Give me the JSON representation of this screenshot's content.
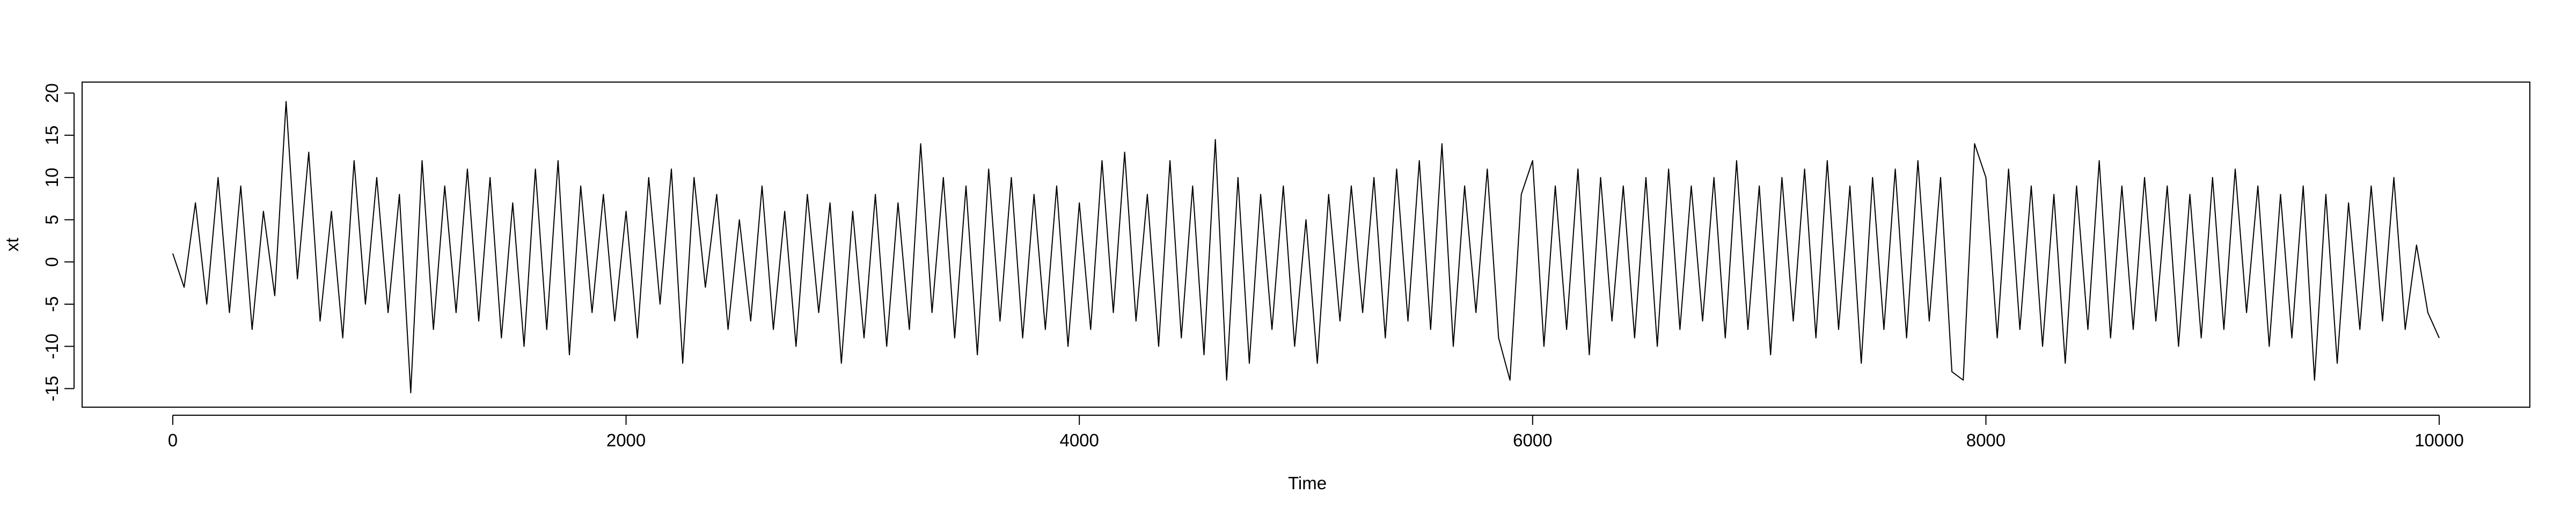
{
  "chart_data": {
    "type": "line",
    "xlabel": "Time",
    "ylabel": "xt",
    "xlim": [
      -400,
      10400
    ],
    "ylim": [
      -17.2,
      21.3
    ],
    "xticks": [
      0,
      2000,
      4000,
      6000,
      8000,
      10000
    ],
    "yticks": [
      -15,
      -10,
      -5,
      0,
      5,
      10,
      15,
      20
    ],
    "color": "#000000",
    "x": [
      0,
      50,
      100,
      150,
      200,
      250,
      300,
      350,
      400,
      450,
      500,
      550,
      600,
      650,
      700,
      750,
      800,
      850,
      900,
      950,
      1000,
      1050,
      1100,
      1150,
      1200,
      1250,
      1300,
      1350,
      1400,
      1450,
      1500,
      1550,
      1600,
      1650,
      1700,
      1750,
      1800,
      1850,
      1900,
      1950,
      2000,
      2050,
      2100,
      2150,
      2200,
      2250,
      2300,
      2350,
      2400,
      2450,
      2500,
      2550,
      2600,
      2650,
      2700,
      2750,
      2800,
      2850,
      2900,
      2950,
      3000,
      3050,
      3100,
      3150,
      3200,
      3250,
      3300,
      3350,
      3400,
      3450,
      3500,
      3550,
      3600,
      3650,
      3700,
      3750,
      3800,
      3850,
      3900,
      3950,
      4000,
      4050,
      4100,
      4150,
      4200,
      4250,
      4300,
      4350,
      4400,
      4450,
      4500,
      4550,
      4600,
      4650,
      4700,
      4750,
      4800,
      4850,
      4900,
      4950,
      5000,
      5050,
      5100,
      5150,
      5200,
      5250,
      5300,
      5350,
      5400,
      5450,
      5500,
      5550,
      5600,
      5650,
      5700,
      5750,
      5800,
      5850,
      5900,
      5950,
      6000,
      6050,
      6100,
      6150,
      6200,
      6250,
      6300,
      6350,
      6400,
      6450,
      6500,
      6550,
      6600,
      6650,
      6700,
      6750,
      6800,
      6850,
      6900,
      6950,
      7000,
      7050,
      7100,
      7150,
      7200,
      7250,
      7300,
      7350,
      7400,
      7450,
      7500,
      7550,
      7600,
      7650,
      7700,
      7750,
      7800,
      7850,
      7900,
      7950,
      8000,
      8050,
      8100,
      8150,
      8200,
      8250,
      8300,
      8350,
      8400,
      8450,
      8500,
      8550,
      8600,
      8650,
      8700,
      8750,
      8800,
      8850,
      8900,
      8950,
      9000,
      9050,
      9100,
      9150,
      9200,
      9250,
      9300,
      9350,
      9400,
      9450,
      9500,
      9550,
      9600,
      9650,
      9700,
      9750,
      9800,
      9850,
      9900,
      9950,
      10000
    ],
    "values": [
      1,
      -3,
      7,
      -5,
      10,
      -6,
      9,
      -8,
      6,
      -4,
      19,
      -2,
      13,
      -7,
      6,
      -9,
      12,
      -5,
      10,
      -6,
      8,
      -15.5,
      12,
      -8,
      9,
      -6,
      11,
      -7,
      10,
      -9,
      7,
      -10,
      11,
      -8,
      12,
      -11,
      9,
      -6,
      8,
      -7,
      6,
      -9,
      10,
      -5,
      11,
      -12,
      10,
      -3,
      8,
      -8,
      5,
      -7,
      9,
      -8,
      6,
      -10,
      8,
      -6,
      7,
      -12,
      6,
      -9,
      8,
      -10,
      7,
      -8,
      14,
      -6,
      10,
      -9,
      9,
      -11,
      11,
      -7,
      10,
      -9,
      8,
      -8,
      9,
      -10,
      7,
      -8,
      12,
      -6,
      13,
      -7,
      8,
      -10,
      12,
      -9,
      9,
      -11,
      14.5,
      -14,
      10,
      -12,
      8,
      -8,
      9,
      -10,
      5,
      -12,
      8,
      -7,
      9,
      -6,
      10,
      -9,
      11,
      -7,
      12,
      -8,
      14,
      -10,
      9,
      -6,
      11,
      -9,
      -14,
      8,
      12,
      -10,
      9,
      -8,
      11,
      -11,
      10,
      -7,
      9,
      -9,
      10,
      -10,
      11,
      -8,
      9,
      -7,
      10,
      -9,
      12,
      -8,
      9,
      -11,
      10,
      -7,
      11,
      -9,
      12,
      -8,
      9,
      -12,
      10,
      -8,
      11,
      -9,
      12,
      -7,
      10,
      -13,
      -14,
      14,
      10,
      -9,
      11,
      -8,
      9,
      -10,
      8,
      -12,
      9,
      -8,
      12,
      -9,
      9,
      -8,
      10,
      -7,
      9,
      -10,
      8,
      -9,
      10,
      -8,
      11,
      -6,
      9,
      -10,
      8,
      -9,
      9,
      -14,
      8,
      -12,
      7,
      -8,
      9,
      -7,
      10,
      -8,
      2,
      -6,
      -9
    ]
  }
}
